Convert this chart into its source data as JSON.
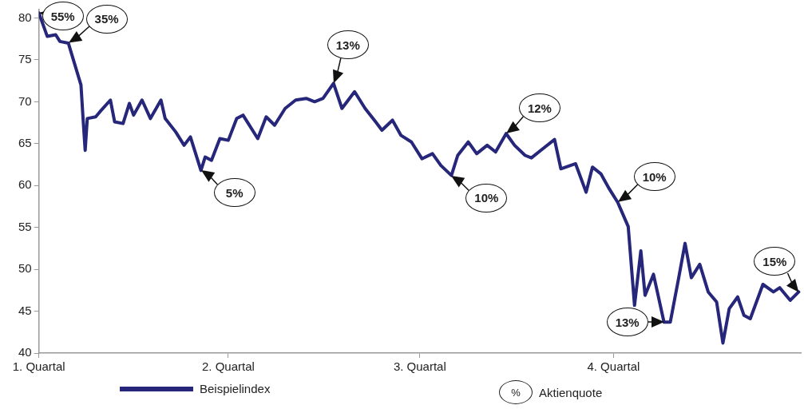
{
  "chart_data": {
    "type": "line",
    "x": [
      "--01-01",
      "--01-05",
      "--01-09",
      "--01-11",
      "--01-15",
      "--01-21",
      "--01-22",
      "--01-23",
      "--01-24",
      "--01-28",
      "--01-30",
      "--02-04",
      "--02-06",
      "--02-10",
      "--02-13",
      "--02-15",
      "--02-19",
      "--02-23",
      "--02-28",
      "--03-02",
      "--03-07",
      "--03-11",
      "--03-14",
      "--03-19",
      "--03-21",
      "--03-24",
      "--03-28",
      "--04-01",
      "--04-05",
      "--04-08",
      "--04-15",
      "--04-19",
      "--04-23",
      "--04-28",
      "--05-03",
      "--05-08",
      "--05-12",
      "--05-16",
      "--05-21",
      "--05-25",
      "--05-31",
      "--06-05",
      "--06-10",
      "--06-13",
      "--06-18",
      "--06-22",
      "--06-27",
      "--07-02",
      "--07-07",
      "--07-11",
      "--07-16",
      "--07-19",
      "--07-24",
      "--07-28",
      "--08-02",
      "--08-06",
      "--08-11",
      "--08-15",
      "--08-20",
      "--08-23",
      "--08-29",
      "--09-03",
      "--09-06",
      "--09-13",
      "--09-18",
      "--09-21",
      "--09-25",
      "--09-29",
      "--10-03",
      "--10-08",
      "--10-11",
      "--10-14",
      "--10-16",
      "--10-20",
      "--10-25",
      "--10-28",
      "--11-01",
      "--11-04",
      "--11-07",
      "--11-11",
      "--11-15",
      "--11-19",
      "--11-22",
      "--11-25",
      "--11-29",
      "--12-02",
      "--12-05",
      "--12-11",
      "--12-16",
      "--12-19",
      "--12-24",
      "--12-28"
    ],
    "series": [
      {
        "name": "Beispielindex",
        "color": "#26267a",
        "values": [
          80.6,
          77.8,
          78,
          77.2,
          77,
          72,
          68,
          64.2,
          68,
          68.2,
          68.8,
          70.2,
          67.6,
          67.4,
          69.8,
          68.4,
          70.2,
          68,
          70.2,
          68,
          66.4,
          64.8,
          65.8,
          61.8,
          63.4,
          63,
          65.6,
          65.4,
          68,
          68.4,
          65.6,
          68.2,
          67.2,
          69.2,
          70.2,
          70.4,
          70,
          70.4,
          72.2,
          69.2,
          71.2,
          69.2,
          67.6,
          66.6,
          67.8,
          66,
          65.2,
          63.2,
          63.8,
          62.4,
          61.2,
          63.6,
          65.2,
          63.8,
          64.8,
          64,
          66.2,
          64.8,
          63.6,
          63.3,
          64.5,
          65.5,
          62,
          62.6,
          59.2,
          62.2,
          61.4,
          59.6,
          58,
          55.1,
          45.7,
          52.2,
          46.9,
          49.4,
          43.7,
          43.7,
          49,
          53.1,
          49,
          50.6,
          47.3,
          46.1,
          41.2,
          45.3,
          46.7,
          44.5,
          44.1,
          48.2,
          47.3,
          47.8,
          46.3,
          47.3
        ]
      }
    ],
    "xlim": [
      "--01-01",
      "--12-29"
    ],
    "xticks": [
      {
        "value": "--01-01",
        "label": "1. Quartal"
      },
      {
        "value": "--04-01",
        "label": "2. Quartal"
      },
      {
        "value": "--07-01",
        "label": "3. Quartal"
      },
      {
        "value": "--10-01",
        "label": "4. Quartal"
      }
    ],
    "ylim": [
      40,
      81
    ],
    "yticks": [
      40,
      45,
      50,
      55,
      60,
      65,
      70,
      75,
      80
    ],
    "grid": false,
    "legend": "bottom",
    "marker": "none",
    "line_style": "solid",
    "annotations": [
      {
        "text": "55%",
        "x": "--01-01",
        "y": 80.6
      },
      {
        "text": "35%",
        "x": "--01-15",
        "y": 77
      },
      {
        "text": "5%",
        "x": "--03-19",
        "y": 61.8
      },
      {
        "text": "13%",
        "x": "--05-21",
        "y": 72.2
      },
      {
        "text": "10%",
        "x": "--07-16",
        "y": 61.2
      },
      {
        "text": "12%",
        "x": "--08-11",
        "y": 66.2
      },
      {
        "text": "10%",
        "x": "--10-03",
        "y": 58
      },
      {
        "text": "13%",
        "x": "--10-25",
        "y": 43.7
      },
      {
        "text": "15%",
        "x": "--12-28",
        "y": 47.3
      },
      "%",
      "Aktienquote"
    ]
  }
}
